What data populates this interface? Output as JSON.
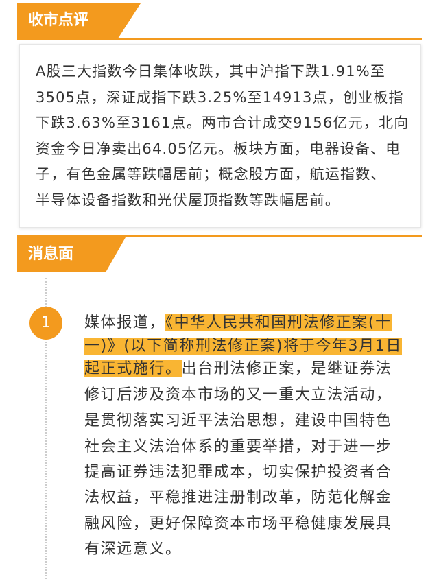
{
  "sections": [
    {
      "title": "收市点评",
      "lines": [
        "A股三大指数今日集体收跌，其中沪指下跌1.91%至",
        "3505点，深证成指下跌3.25%至14913点，创业板指",
        "下跌3.63%至3161点。两市合计成交9156亿元，北向",
        "资金今日净卖出64.05亿元。板块方面，电器设备、电",
        "子，有色金属等跌幅居前；概念股方面，航运指数、",
        "半导体设备指数和光伏屋顶指数等跌幅居前。"
      ]
    },
    {
      "title": "消息面",
      "items": [
        {
          "number": "1",
          "lines": [
            [
              {
                "text": "媒体报道，"
              },
              {
                "text": "《中华人民共和国刑法修正案(十",
                "highlight": true
              }
            ],
            [
              {
                "text": "一)》(以下简称刑法修正案)将于今年3月1日",
                "highlight": true
              }
            ],
            [
              {
                "text": "起正式施行。",
                "highlight": true
              },
              {
                "text": "出台刑法修正案，是继证券法"
              }
            ],
            [
              {
                "text": "修订后涉及资本市场的又一重大立法活动，"
              }
            ],
            [
              {
                "text": "是贯彻落实习近平法治思想，建设中国特色"
              }
            ],
            [
              {
                "text": "社会主义法治体系的重要举措，对于进一步"
              }
            ],
            [
              {
                "text": "提高证券违法犯罪成本，切实保护投资者合"
              }
            ],
            [
              {
                "text": "法权益，平稳推进注册制改革，防范化解金"
              }
            ],
            [
              {
                "text": "融风险，更好保障资本市场平稳健康发展具"
              }
            ],
            [
              {
                "text": "有深远意义。"
              }
            ]
          ]
        }
      ]
    }
  ]
}
